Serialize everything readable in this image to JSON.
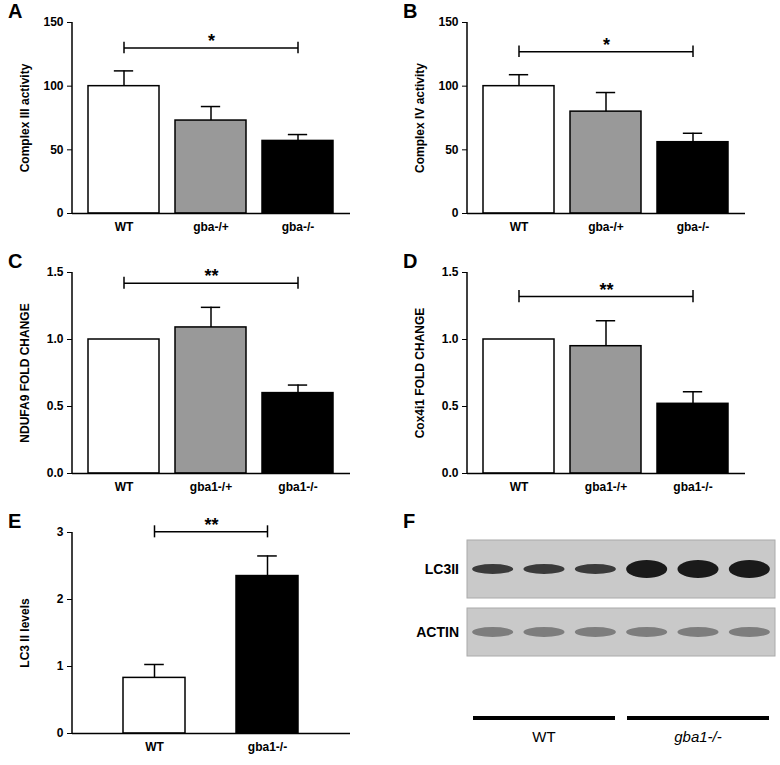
{
  "chart_data": [
    {
      "type": "bar",
      "title": "A",
      "y_label": "Complex III activity",
      "categories": [
        "WT",
        "gba-/+",
        "gba-/-"
      ],
      "values": [
        100,
        73,
        57
      ],
      "errors": [
        12,
        11,
        5
      ],
      "colors": [
        "#ffffff",
        "#999999",
        "#000000"
      ],
      "ylim": [
        0,
        150
      ],
      "yticks": [
        0,
        50,
        100,
        150
      ],
      "annotations": [
        {
          "text": "*",
          "from": "WT",
          "to": "gba-/-"
        }
      ]
    },
    {
      "type": "bar",
      "title": "B",
      "y_label": "Complex IV activity",
      "categories": [
        "WT",
        "gba-/+",
        "gba-/-"
      ],
      "values": [
        100,
        80,
        56
      ],
      "errors": [
        9,
        15,
        7
      ],
      "colors": [
        "#ffffff",
        "#999999",
        "#000000"
      ],
      "ylim": [
        0,
        150
      ],
      "yticks": [
        0,
        50,
        100,
        150
      ],
      "annotations": [
        {
          "text": "*",
          "from": "WT",
          "to": "gba-/-"
        }
      ]
    },
    {
      "type": "bar",
      "title": "C",
      "y_label": "NDUFA9 FOLD CHANGE",
      "categories": [
        "WT",
        "gba1-/+",
        "gba1-/-"
      ],
      "values": [
        1.0,
        1.09,
        0.6
      ],
      "errors": [
        0,
        0.15,
        0.06
      ],
      "colors": [
        "#ffffff",
        "#999999",
        "#000000"
      ],
      "ylim": [
        0,
        1.5
      ],
      "yticks": [
        {
          "value": 0,
          "label": "0.0"
        },
        {
          "value": 0.5,
          "label": "0.5"
        },
        {
          "value": 1,
          "label": "1.0"
        },
        {
          "value": 1.5,
          "label": "1.5"
        }
      ],
      "annotations": [
        {
          "text": "**",
          "from": "WT",
          "to": "gba1-/-"
        }
      ]
    },
    {
      "type": "bar",
      "title": "D",
      "y_label": "Cox4i1 FOLD CHANGE",
      "categories": [
        "WT",
        "gba1-/+",
        "gba1-/-"
      ],
      "values": [
        1.0,
        0.95,
        0.52
      ],
      "errors": [
        0,
        0.19,
        0.09
      ],
      "colors": [
        "#ffffff",
        "#999999",
        "#000000"
      ],
      "ylim": [
        0,
        1.5
      ],
      "yticks": [
        {
          "value": 0,
          "label": "0.0"
        },
        {
          "value": 0.5,
          "label": "0.5"
        },
        {
          "value": 1,
          "label": "1.0"
        },
        {
          "value": 1.5,
          "label": "1.5"
        }
      ],
      "annotations": [
        {
          "text": "**",
          "from": "WT",
          "to": "gba1-/-"
        }
      ]
    },
    {
      "type": "bar",
      "title": "E",
      "y_label": "LC3 II levels",
      "categories": [
        "WT",
        "gba1-/-"
      ],
      "values": [
        0.83,
        2.35
      ],
      "errors": [
        0.2,
        0.3
      ],
      "colors": [
        "#ffffff",
        "#000000"
      ],
      "ylim": [
        0,
        3
      ],
      "yticks": [
        0,
        1,
        2,
        3
      ],
      "annotations": [
        {
          "text": "**",
          "from": "WT",
          "to": "gba1-/-"
        }
      ]
    }
  ],
  "blot": {
    "title": "F",
    "rows": [
      "LC3II",
      "ACTIN"
    ],
    "groups": [
      {
        "label": "WT",
        "lanes": 3
      },
      {
        "label": "gba1-/-",
        "lanes": 3
      }
    ]
  }
}
